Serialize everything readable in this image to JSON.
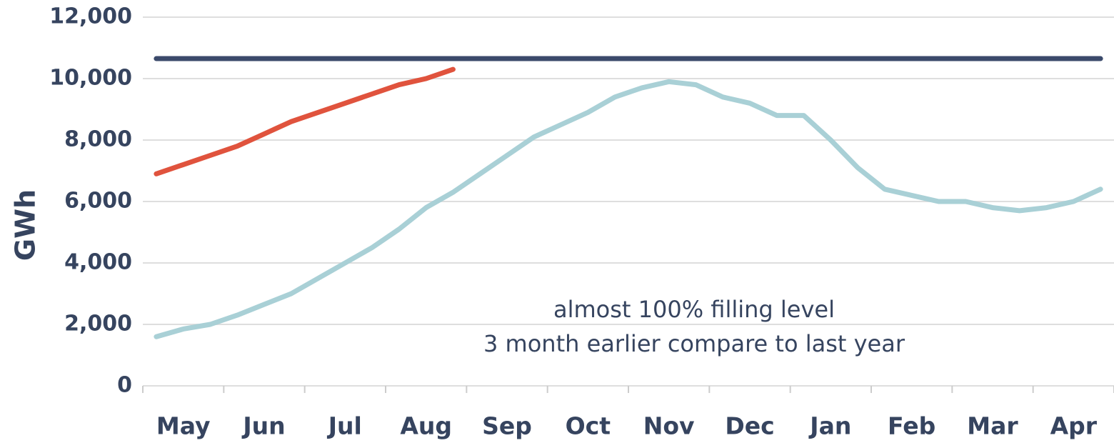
{
  "chart_data": {
    "type": "line",
    "y_label": "GWh",
    "annotation": [
      "almost 100% filling level",
      "3 month earlier compare to last year"
    ],
    "categories": [
      null,
      "May",
      null,
      null,
      "Jun",
      null,
      null,
      "Jul",
      null,
      null,
      "Aug",
      null,
      null,
      "Sep",
      null,
      null,
      "Oct",
      null,
      null,
      "Nov",
      null,
      null,
      "Dec",
      null,
      null,
      "Jan",
      null,
      null,
      "Feb",
      null,
      null,
      "Mar",
      null,
      null,
      "Apr",
      null
    ],
    "series": [
      {
        "color": "#a9d0d6",
        "values": [
          1600,
          1850,
          2000,
          2300,
          2650,
          3000,
          3500,
          4000,
          4500,
          5100,
          5800,
          6300,
          6900,
          7500,
          8100,
          8500,
          8900,
          9400,
          9700,
          9900,
          9800,
          9400,
          9200,
          8800,
          8800,
          8000,
          7100,
          6400,
          6200,
          6000,
          6000,
          5800,
          5700,
          5800,
          6000,
          6400
        ]
      },
      {
        "color": "#e0533d",
        "values": [
          6900,
          7200,
          7500,
          7800,
          8200,
          8600,
          8900,
          9200,
          9500,
          9800,
          10000,
          10300,
          null,
          null,
          null,
          null,
          null,
          null,
          null,
          null,
          null,
          null,
          null,
          null,
          null,
          null,
          null,
          null,
          null,
          null,
          null,
          null,
          null,
          null,
          null,
          null
        ]
      },
      {
        "color": "#3b4a6b",
        "values": [
          10650,
          10650,
          10650,
          10650,
          10650,
          10650,
          10650,
          10650,
          10650,
          10650,
          10650,
          10650,
          10650,
          10650,
          10650,
          10650,
          10650,
          10650,
          10650,
          10650,
          10650,
          10650,
          10650,
          10650,
          10650,
          10650,
          10650,
          10650,
          10650,
          10650,
          10650,
          10650,
          10650,
          10650,
          10650,
          10650
        ]
      }
    ],
    "ylim": [
      0,
      12000
    ],
    "yticks": [
      0,
      {
        "value": 2000,
        "label": "2,000"
      },
      {
        "value": 4000,
        "label": "4,000"
      },
      {
        "value": 6000,
        "label": "6,000"
      },
      {
        "value": 8000,
        "label": "8,000"
      },
      {
        "value": 10000,
        "label": "10,000"
      },
      {
        "value": 12000,
        "label": "12,000"
      }
    ],
    "grid": true
  }
}
